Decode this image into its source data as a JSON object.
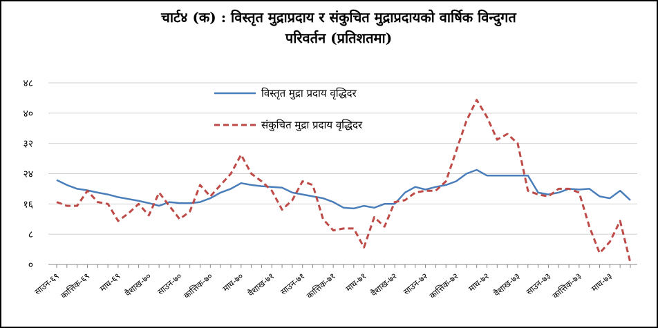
{
  "chart_data": {
    "type": "line",
    "title": [
      "चार्ट४ (क) : विस्तृत मुद्राप्रदाय र संकुचित मुद्राप्रदायको वार्षिक विन्दुगत",
      "परिवर्तन (प्रतिशतमा)"
    ],
    "categories": [
      "साउन-६९",
      null,
      null,
      "कात्तिक-६९",
      null,
      null,
      "माघ-६९",
      null,
      null,
      "वैशाख-७०",
      null,
      null,
      "साउन-७०",
      null,
      null,
      "कात्तिक-७०",
      null,
      null,
      "माघ-७०",
      null,
      null,
      "वैशाख-७१",
      null,
      null,
      "साउन-७१",
      null,
      null,
      "कात्तिक-७१",
      null,
      null,
      "माघ-७१",
      null,
      null,
      "वैशाख-७२",
      null,
      null,
      "साउन-७२",
      null,
      null,
      "कात्तिक-७२",
      null,
      null,
      "माघ-७२",
      null,
      null,
      "वैशाख-७३",
      null,
      null,
      "साउन-७३",
      null,
      null,
      "कात्तिक-७३",
      null,
      null,
      "माघ-७३",
      null,
      null
    ],
    "series": [
      {
        "name": "विस्तृत मुद्रा प्रदाय वृद्धिदर",
        "color": "#4a7ebb",
        "dashed": false,
        "values": [
          22.3,
          21,
          20,
          19.6,
          19,
          18.5,
          17.8,
          17.3,
          16.8,
          16.2,
          15.5,
          16.5,
          16.2,
          16.2,
          16.5,
          17.5,
          19,
          20,
          21.5,
          21,
          20.7,
          20.5,
          20.3,
          19,
          18.5,
          18,
          17.5,
          16.5,
          15,
          14.8,
          15.5,
          15,
          16,
          16,
          19,
          20.5,
          19.8,
          20.5,
          21,
          22,
          24,
          25,
          23.5,
          23.5,
          23.5,
          23.5,
          23.5,
          19,
          18.5,
          19,
          20,
          19.8,
          20,
          18,
          17.5,
          19.5,
          17
        ]
      },
      {
        "name": "संकुचित मुद्रा प्रदाय वृद्धिदर",
        "color": "#be4b48",
        "dashed": true,
        "values": [
          16.5,
          15.5,
          15.5,
          19.5,
          16.5,
          16,
          11.5,
          13.5,
          16,
          13,
          19,
          15.5,
          12,
          14,
          21,
          18,
          21,
          24,
          29,
          24,
          22,
          19.5,
          14.5,
          17,
          22,
          21,
          12,
          9,
          9.5,
          9.5,
          4.5,
          12.5,
          10,
          16.5,
          17,
          19,
          19.5,
          19.5,
          22,
          30,
          38,
          43.5,
          39,
          33,
          34.5,
          32,
          19.5,
          18.5,
          18,
          20,
          20,
          19,
          10,
          3,
          6,
          11.5,
          0.5
        ]
      }
    ],
    "ylim": [
      0,
      48
    ],
    "yticks": [
      {
        "value": 0,
        "label": "०"
      },
      {
        "value": 8,
        "label": "८"
      },
      {
        "value": 16,
        "label": "१६"
      },
      {
        "value": 24,
        "label": "२४"
      },
      {
        "value": 32,
        "label": "३२"
      },
      {
        "value": 40,
        "label": "४०"
      },
      {
        "value": 48,
        "label": "४८"
      }
    ],
    "grid": true,
    "legend": "top"
  }
}
